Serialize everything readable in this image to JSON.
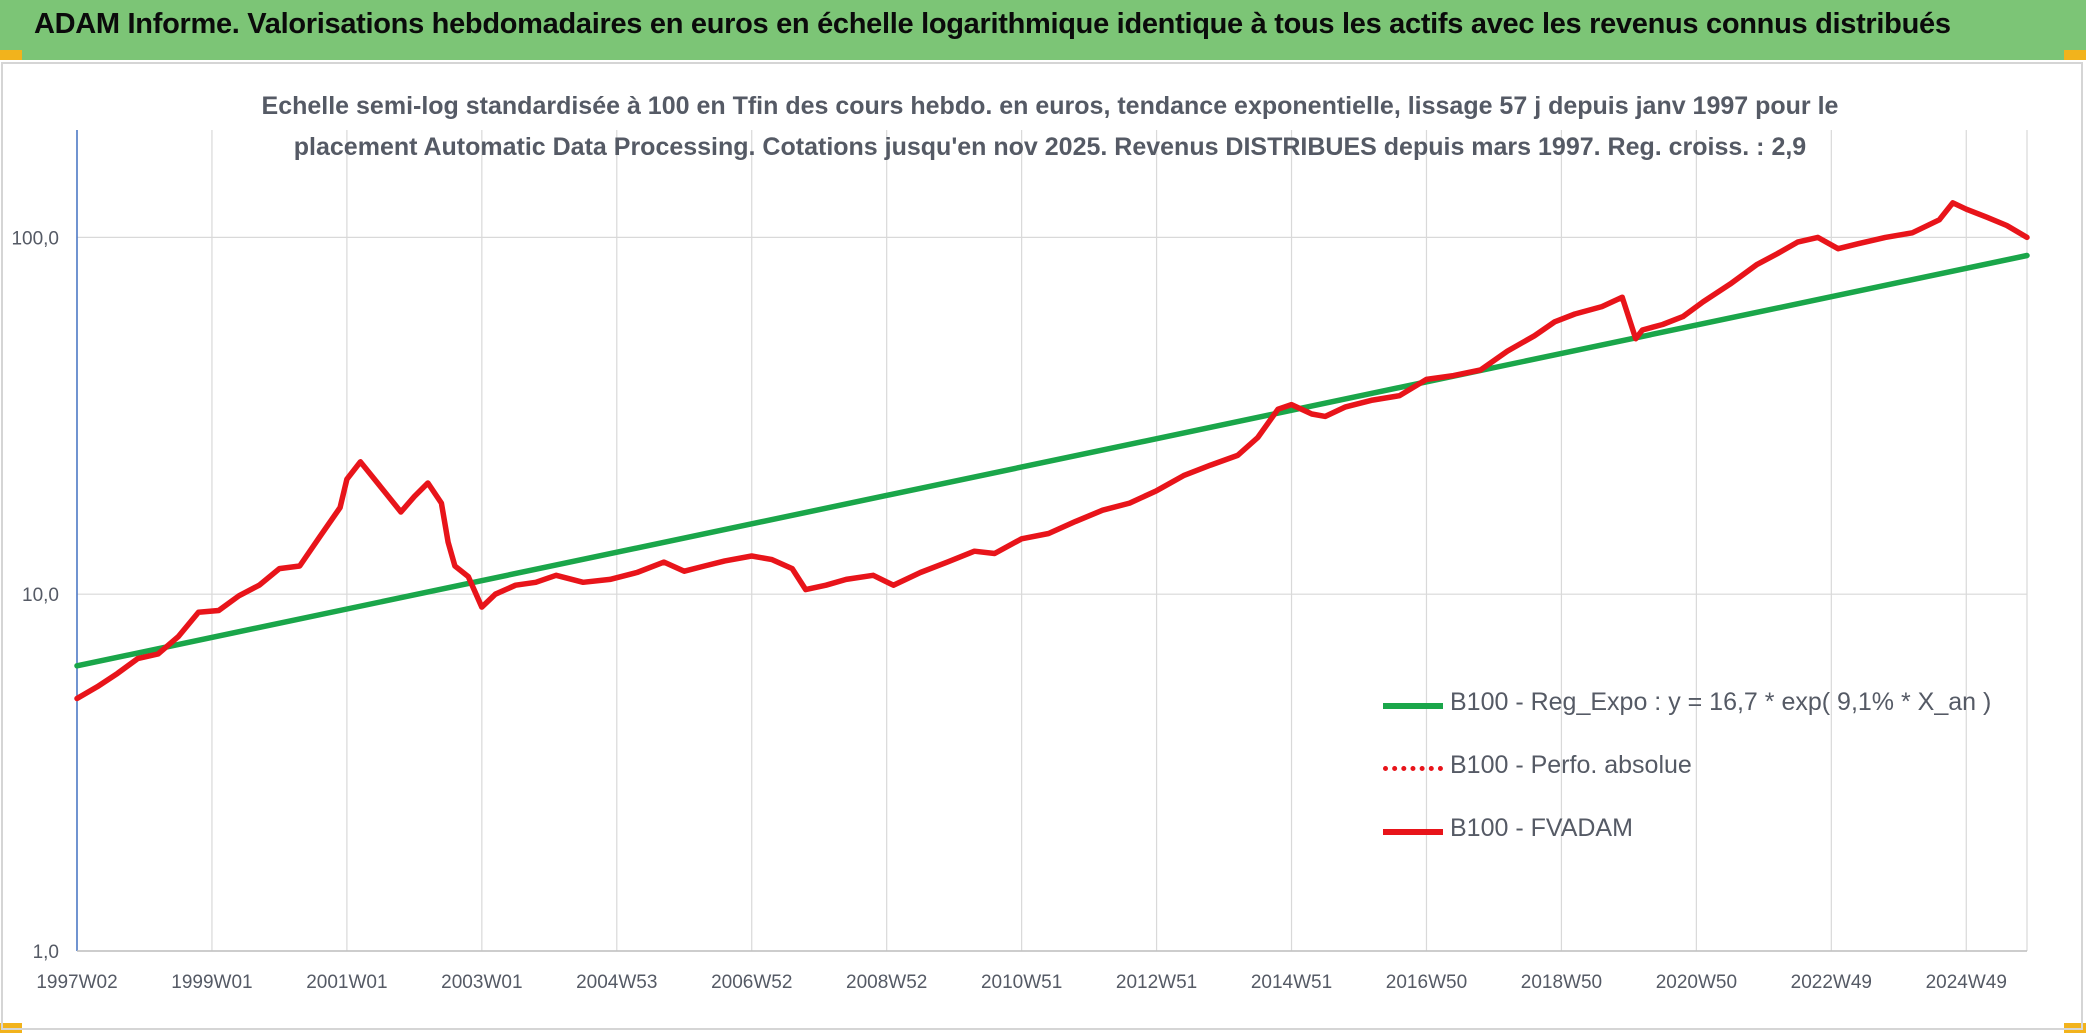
{
  "header": {
    "title": "ADAM Informe. Valorisations hebdomadaires en euros en échelle logarithmique identique à tous les actifs avec les revenus connus distribués"
  },
  "chart_data": {
    "type": "line",
    "title": "Echelle semi-log standardisée à 100 en Tfin des cours hebdo. en euros, tendance exponentielle, lissage 57 j depuis janv 1997 pour le placement Automatic Data Processing. Cotations jusqu'en nov 2025. Revenus DISTRIBUES depuis mars 1997. Reg. croiss. : 2,9",
    "xlabel": "",
    "ylabel": "",
    "y_scale": "log",
    "ylim": [
      1,
      200
    ],
    "xlim": [
      1997.0,
      2025.9
    ],
    "grid": true,
    "legend_position": "bottom-right",
    "y_ticks": [
      {
        "value": 1,
        "label": "1,0"
      },
      {
        "value": 10,
        "label": "10,0"
      },
      {
        "value": 100,
        "label": "100,0"
      }
    ],
    "x_ticks": [
      {
        "value": 1997.0,
        "label": "1997W02"
      },
      {
        "value": 1999.0,
        "label": "1999W01"
      },
      {
        "value": 2001.0,
        "label": "2001W01"
      },
      {
        "value": 2003.0,
        "label": "2003W01"
      },
      {
        "value": 2005.0,
        "label": "2004W53"
      },
      {
        "value": 2007.0,
        "label": "2006W52"
      },
      {
        "value": 2009.0,
        "label": "2008W52"
      },
      {
        "value": 2011.0,
        "label": "2010W51"
      },
      {
        "value": 2013.0,
        "label": "2012W51"
      },
      {
        "value": 2015.0,
        "label": "2014W51"
      },
      {
        "value": 2017.0,
        "label": "2016W50"
      },
      {
        "value": 2019.0,
        "label": "2018W50"
      },
      {
        "value": 2021.0,
        "label": "2020W50"
      },
      {
        "value": 2023.0,
        "label": "2022W49"
      },
      {
        "value": 2025.0,
        "label": "2024W49"
      }
    ],
    "series": [
      {
        "name": "B100 - Reg_Expo : y = 16,7 * exp( 9,1% *  X_an )",
        "color": "#1aa64a",
        "style": "solid",
        "x": [
          1997.0,
          2025.9
        ],
        "y": [
          6.3,
          89
        ]
      },
      {
        "name": "B100 - Perfo. absolue",
        "color": "#e8141a",
        "style": "dotted",
        "x": [],
        "y": []
      },
      {
        "name": "B100 - FVADAM",
        "color": "#e8141a",
        "style": "solid",
        "x": [
          1997.0,
          1997.3,
          1997.6,
          1997.9,
          1998.2,
          1998.5,
          1998.8,
          1999.1,
          1999.4,
          1999.7,
          2000.0,
          2000.3,
          2000.6,
          2000.9,
          2001.0,
          2001.2,
          2001.5,
          2001.8,
          2002.0,
          2002.2,
          2002.4,
          2002.5,
          2002.6,
          2002.8,
          2003.0,
          2003.2,
          2003.5,
          2003.8,
          2004.1,
          2004.5,
          2004.9,
          2005.3,
          2005.7,
          2006.0,
          2006.3,
          2006.6,
          2007.0,
          2007.3,
          2007.6,
          2007.8,
          2008.1,
          2008.4,
          2008.8,
          2009.1,
          2009.5,
          2009.9,
          2010.3,
          2010.6,
          2011.0,
          2011.4,
          2011.8,
          2012.2,
          2012.6,
          2013.0,
          2013.4,
          2013.8,
          2014.2,
          2014.5,
          2014.8,
          2015.0,
          2015.3,
          2015.5,
          2015.8,
          2016.2,
          2016.6,
          2017.0,
          2017.4,
          2017.8,
          2018.2,
          2018.6,
          2018.9,
          2019.2,
          2019.6,
          2019.9,
          2020.1,
          2020.2,
          2020.5,
          2020.8,
          2021.1,
          2021.5,
          2021.9,
          2022.2,
          2022.5,
          2022.8,
          2023.1,
          2023.4,
          2023.8,
          2024.2,
          2024.6,
          2024.8,
          2025.0,
          2025.3,
          2025.6,
          2025.9
        ],
        "y": [
          5.1,
          5.5,
          6.0,
          6.6,
          6.8,
          7.6,
          8.9,
          9.0,
          9.9,
          10.6,
          11.8,
          12.0,
          14.5,
          17.5,
          21.0,
          23.5,
          20.0,
          17.0,
          18.8,
          20.5,
          18.0,
          14.0,
          12.0,
          11.2,
          9.2,
          10.0,
          10.6,
          10.8,
          11.3,
          10.8,
          11.0,
          11.5,
          12.3,
          11.6,
          12.0,
          12.4,
          12.8,
          12.5,
          11.8,
          10.3,
          10.6,
          11.0,
          11.3,
          10.6,
          11.5,
          12.3,
          13.2,
          13.0,
          14.3,
          14.8,
          16.0,
          17.2,
          18.0,
          19.5,
          21.5,
          23.0,
          24.5,
          27.5,
          33.0,
          34.0,
          32.0,
          31.5,
          33.5,
          35.0,
          36.0,
          40.0,
          41.0,
          42.5,
          48.0,
          53.0,
          58.0,
          61.0,
          64.0,
          68.0,
          52.0,
          55.0,
          57.0,
          60.0,
          66.0,
          74.0,
          84.0,
          90.0,
          97.0,
          100.0,
          93.0,
          96.0,
          100.0,
          103.0,
          112.0,
          125.0,
          120.0,
          114.0,
          108.0,
          100.0
        ]
      }
    ]
  }
}
